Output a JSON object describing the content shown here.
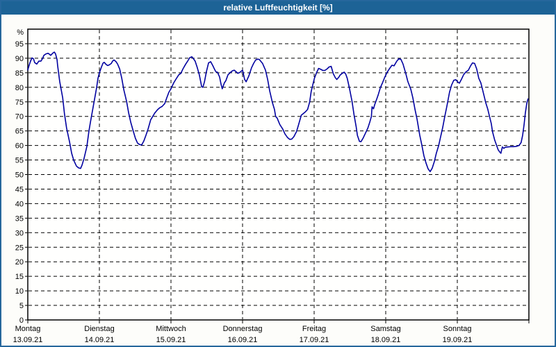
{
  "window": {
    "title": "relative Luftfeuchtigkeit [%]"
  },
  "colors": {
    "titlebar": "#1d6396",
    "frame": "#26679c",
    "line": "#0000a0",
    "grid": "#000000",
    "background": "#fdfdfa",
    "plot_background": "#fffffe"
  },
  "chart_data": {
    "type": "line",
    "title": "relative Luftfeuchtigkeit [%]",
    "ylabel": "%",
    "ylim": [
      0,
      100
    ],
    "yticks": [
      0,
      5,
      10,
      15,
      20,
      25,
      30,
      35,
      40,
      45,
      50,
      55,
      60,
      65,
      70,
      75,
      80,
      85,
      90,
      95
    ],
    "x_unit": "hours",
    "xlim": [
      0,
      168
    ],
    "x_day_step": 24,
    "grid": "dashed",
    "legend_position": "none",
    "days": [
      {
        "name": "Montag",
        "date": "13.09.21"
      },
      {
        "name": "Dienstag",
        "date": "14.09.21"
      },
      {
        "name": "Mittwoch",
        "date": "15.09.21"
      },
      {
        "name": "Donnerstag",
        "date": "16.09.21"
      },
      {
        "name": "Freitag",
        "date": "17.09.21"
      },
      {
        "name": "Samstag",
        "date": "18.09.21"
      },
      {
        "name": "Sonntag",
        "date": "19.09.21"
      }
    ],
    "series": [
      {
        "name": "relative Luftfeuchtigkeit",
        "color": "#0000a0",
        "points": [
          [
            0,
            86
          ],
          [
            0.5,
            87.7
          ],
          [
            0.9,
            89
          ],
          [
            1.4,
            90.1
          ],
          [
            1.9,
            89.8
          ],
          [
            2.3,
            88.5
          ],
          [
            3,
            88
          ],
          [
            3.7,
            89
          ],
          [
            4.4,
            89
          ],
          [
            4.9,
            89.8
          ],
          [
            5.4,
            91
          ],
          [
            6.1,
            91.5
          ],
          [
            6.8,
            91.7
          ],
          [
            7.2,
            91.4
          ],
          [
            7.7,
            91
          ],
          [
            8.4,
            91.8
          ],
          [
            8.9,
            92.1
          ],
          [
            9.3,
            91.5
          ],
          [
            9.8,
            89.5
          ],
          [
            10,
            87.5
          ],
          [
            10.7,
            82
          ],
          [
            11.7,
            76.4
          ],
          [
            12.3,
            70.8
          ],
          [
            13,
            66
          ],
          [
            14,
            61.2
          ],
          [
            14.7,
            57.3
          ],
          [
            15.4,
            54.9
          ],
          [
            16.3,
            52.9
          ],
          [
            17,
            52.3
          ],
          [
            17.7,
            52.1
          ],
          [
            18.2,
            53.3
          ],
          [
            18.9,
            55.7
          ],
          [
            19.8,
            59.7
          ],
          [
            20.5,
            65
          ],
          [
            21,
            68
          ],
          [
            21.7,
            72
          ],
          [
            22.4,
            76
          ],
          [
            23.1,
            80
          ],
          [
            23.5,
            83
          ],
          [
            24,
            85
          ],
          [
            24.7,
            87
          ],
          [
            25.2,
            88.3
          ],
          [
            25.6,
            88.6
          ],
          [
            26.3,
            87.8
          ],
          [
            26.8,
            87.5
          ],
          [
            27.3,
            87.7
          ],
          [
            28,
            88.2
          ],
          [
            28.4,
            89
          ],
          [
            28.9,
            89.4
          ],
          [
            29.6,
            88.8
          ],
          [
            30.1,
            88
          ],
          [
            30.8,
            86.3
          ],
          [
            31.5,
            83.1
          ],
          [
            32.2,
            79.1
          ],
          [
            33.1,
            75.2
          ],
          [
            33.8,
            71.2
          ],
          [
            34.5,
            68
          ],
          [
            35.4,
            64.8
          ],
          [
            36.1,
            62.4
          ],
          [
            36.8,
            60.8
          ],
          [
            37.5,
            60.3
          ],
          [
            38.2,
            60.2
          ],
          [
            38.9,
            61.5
          ],
          [
            39.6,
            63.5
          ],
          [
            40.3,
            65.6
          ],
          [
            41.2,
            68.8
          ],
          [
            41.9,
            70
          ],
          [
            42.6,
            71.2
          ],
          [
            43.6,
            72.4
          ],
          [
            44.3,
            73
          ],
          [
            45,
            73.4
          ],
          [
            45.9,
            74.4
          ],
          [
            46.6,
            76.4
          ],
          [
            47.3,
            78.3
          ],
          [
            48,
            79.5
          ],
          [
            48.9,
            81.5
          ],
          [
            49.6,
            82.7
          ],
          [
            50.6,
            84.3
          ],
          [
            51.3,
            84.8
          ],
          [
            52,
            86.3
          ],
          [
            52.9,
            87.9
          ],
          [
            53.6,
            89
          ],
          [
            54.3,
            90.2
          ],
          [
            55,
            90.5
          ],
          [
            55.4,
            90
          ],
          [
            56.1,
            89
          ],
          [
            56.8,
            86.8
          ],
          [
            57.5,
            84.3
          ],
          [
            58.3,
            80.2
          ],
          [
            58.7,
            80
          ],
          [
            59.2,
            81.8
          ],
          [
            59.9,
            85.5
          ],
          [
            60.6,
            88.4
          ],
          [
            61.3,
            88.8
          ],
          [
            62,
            87.5
          ],
          [
            62.7,
            86
          ],
          [
            63.1,
            85.3
          ],
          [
            63.6,
            85.2
          ],
          [
            64.3,
            83.5
          ],
          [
            64.8,
            81
          ],
          [
            65.2,
            79.5
          ],
          [
            65.9,
            81.5
          ],
          [
            66.4,
            82.3
          ],
          [
            67.1,
            84.3
          ],
          [
            67.8,
            85
          ],
          [
            68.5,
            85.6
          ],
          [
            69.2,
            85.9
          ],
          [
            69.9,
            85.3
          ],
          [
            70.4,
            84.8
          ],
          [
            71.1,
            85.1
          ],
          [
            71.5,
            85.5
          ],
          [
            72,
            85.9
          ],
          [
            72.7,
            82.7
          ],
          [
            73.2,
            81.9
          ],
          [
            74.1,
            83.9
          ],
          [
            75,
            86.7
          ],
          [
            75.7,
            88.2
          ],
          [
            76.4,
            89.4
          ],
          [
            77.1,
            89.7
          ],
          [
            77.6,
            89.6
          ],
          [
            78.7,
            88.2
          ],
          [
            79.7,
            85.9
          ],
          [
            80.4,
            82.7
          ],
          [
            81.1,
            78.7
          ],
          [
            82,
            74.8
          ],
          [
            82.7,
            72.4
          ],
          [
            83.1,
            70
          ],
          [
            83.6,
            69.4
          ],
          [
            84.5,
            67.2
          ],
          [
            85.5,
            65.6
          ],
          [
            86.2,
            64
          ],
          [
            87.1,
            62.7
          ],
          [
            87.8,
            62.1
          ],
          [
            88.5,
            62.2
          ],
          [
            89.2,
            63
          ],
          [
            90.1,
            64.8
          ],
          [
            90.8,
            67.2
          ],
          [
            91.7,
            70.4
          ],
          [
            92.4,
            71
          ],
          [
            93.1,
            71.6
          ],
          [
            93.8,
            72.4
          ],
          [
            94.5,
            75
          ],
          [
            95,
            78.5
          ],
          [
            95.7,
            81.5
          ],
          [
            96.1,
            83.1
          ],
          [
            96.8,
            85
          ],
          [
            97.5,
            86.5
          ],
          [
            98.2,
            86.2
          ],
          [
            98.9,
            85.8
          ],
          [
            99.6,
            85.8
          ],
          [
            100.3,
            86.3
          ],
          [
            101,
            87
          ],
          [
            101.7,
            87.2
          ],
          [
            102.4,
            84.7
          ],
          [
            103.1,
            83.3
          ],
          [
            103.6,
            82.7
          ],
          [
            104.3,
            83.5
          ],
          [
            104.7,
            84.2
          ],
          [
            105.4,
            84.8
          ],
          [
            106.1,
            85.2
          ],
          [
            106.6,
            84.5
          ],
          [
            107.1,
            83.1
          ],
          [
            107.8,
            79.9
          ],
          [
            108.7,
            75.2
          ],
          [
            109.4,
            70.4
          ],
          [
            110.1,
            66.4
          ],
          [
            110.5,
            63.5
          ],
          [
            111.2,
            61.4
          ],
          [
            111.7,
            61.3
          ],
          [
            112.4,
            62.5
          ],
          [
            113.1,
            64
          ],
          [
            114,
            66
          ],
          [
            114.7,
            68.2
          ],
          [
            115.2,
            70
          ],
          [
            115.4,
            73.3
          ],
          [
            115.9,
            72.6
          ],
          [
            116.3,
            74
          ],
          [
            117,
            76
          ],
          [
            117.5,
            77.5
          ],
          [
            118.2,
            79.9
          ],
          [
            118.9,
            81.5
          ],
          [
            119.6,
            83.3
          ],
          [
            120.5,
            85.2
          ],
          [
            121.4,
            86.6
          ],
          [
            122.1,
            87.6
          ],
          [
            122.8,
            87.4
          ],
          [
            123.7,
            89
          ],
          [
            124.4,
            89.8
          ],
          [
            125.1,
            89.6
          ],
          [
            125.8,
            88
          ],
          [
            126.7,
            84.8
          ],
          [
            127.4,
            82
          ],
          [
            128.4,
            79.3
          ],
          [
            129.1,
            76.3
          ],
          [
            129.8,
            72.4
          ],
          [
            130.5,
            69
          ],
          [
            131.4,
            63.6
          ],
          [
            132.1,
            60.2
          ],
          [
            132.8,
            56.5
          ],
          [
            133.5,
            54
          ],
          [
            134.2,
            52
          ],
          [
            134.9,
            51
          ],
          [
            135.6,
            52.2
          ],
          [
            136.3,
            54.5
          ],
          [
            137,
            57.5
          ],
          [
            137.7,
            59.8
          ],
          [
            138.4,
            63
          ],
          [
            139.1,
            66.2
          ],
          [
            139.8,
            70
          ],
          [
            140.5,
            73.5
          ],
          [
            141.4,
            78.3
          ],
          [
            142.1,
            80.8
          ],
          [
            142.8,
            82.4
          ],
          [
            143.5,
            82.6
          ],
          [
            144.2,
            81.8
          ],
          [
            144.7,
            81.4
          ],
          [
            145.4,
            82.8
          ],
          [
            146.1,
            84.3
          ],
          [
            146.8,
            85.2
          ],
          [
            147.7,
            85.9
          ],
          [
            148.4,
            87.3
          ],
          [
            149.1,
            88.4
          ],
          [
            149.8,
            88.2
          ],
          [
            150.5,
            86.3
          ],
          [
            151.2,
            83.1
          ],
          [
            151.9,
            81.5
          ],
          [
            152.3,
            79.9
          ],
          [
            153,
            77
          ],
          [
            153.5,
            74.8
          ],
          [
            154.2,
            72.5
          ],
          [
            154.7,
            70.4
          ],
          [
            155.4,
            67.5
          ],
          [
            155.8,
            64.8
          ],
          [
            156.5,
            62
          ],
          [
            157,
            60.5
          ],
          [
            157.7,
            58.5
          ],
          [
            158.2,
            57.8
          ],
          [
            158.6,
            57.3
          ],
          [
            159.1,
            59.5
          ],
          [
            159.6,
            59
          ],
          [
            160.1,
            59.4
          ],
          [
            161,
            59.5
          ],
          [
            161.9,
            59.6
          ],
          [
            162.9,
            59.6
          ],
          [
            163.8,
            59.7
          ],
          [
            164.7,
            60
          ],
          [
            165.4,
            61
          ],
          [
            165.9,
            63.5
          ],
          [
            166.4,
            67.2
          ],
          [
            166.8,
            71.2
          ],
          [
            167.3,
            74.5
          ],
          [
            167.7,
            76
          ]
        ]
      }
    ]
  }
}
